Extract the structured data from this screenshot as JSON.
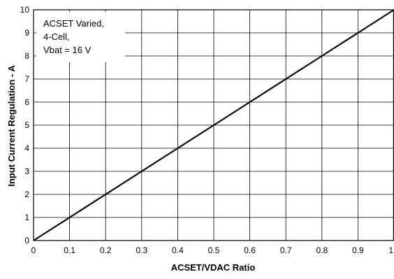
{
  "chart_data": {
    "type": "line",
    "title": "",
    "xlabel": "ACSET/VDAC Ratio",
    "ylabel": "Input Current Regulation - A",
    "xlim": [
      0,
      1
    ],
    "ylim": [
      0,
      10
    ],
    "x_ticks": [
      "0",
      "0.1",
      "0.2",
      "0.3",
      "0.4",
      "0.5",
      "0.6",
      "0.7",
      "0.8",
      "0.9",
      "1"
    ],
    "y_ticks": [
      "0",
      "1",
      "2",
      "3",
      "4",
      "5",
      "6",
      "7",
      "8",
      "9",
      "10"
    ],
    "grid": true,
    "legend": "none",
    "annotation": [
      "ACSET Varied,",
      "4-Cell,",
      "Vbat = 16 V"
    ],
    "series": [
      {
        "x": [
          0,
          0.1,
          0.2,
          0.3,
          0.4,
          0.5,
          0.6,
          0.7,
          0.8,
          0.9,
          1.0
        ],
        "y": [
          0,
          1,
          2,
          3,
          4,
          5,
          6,
          7,
          8,
          9,
          10
        ],
        "color": "#000000"
      }
    ]
  }
}
